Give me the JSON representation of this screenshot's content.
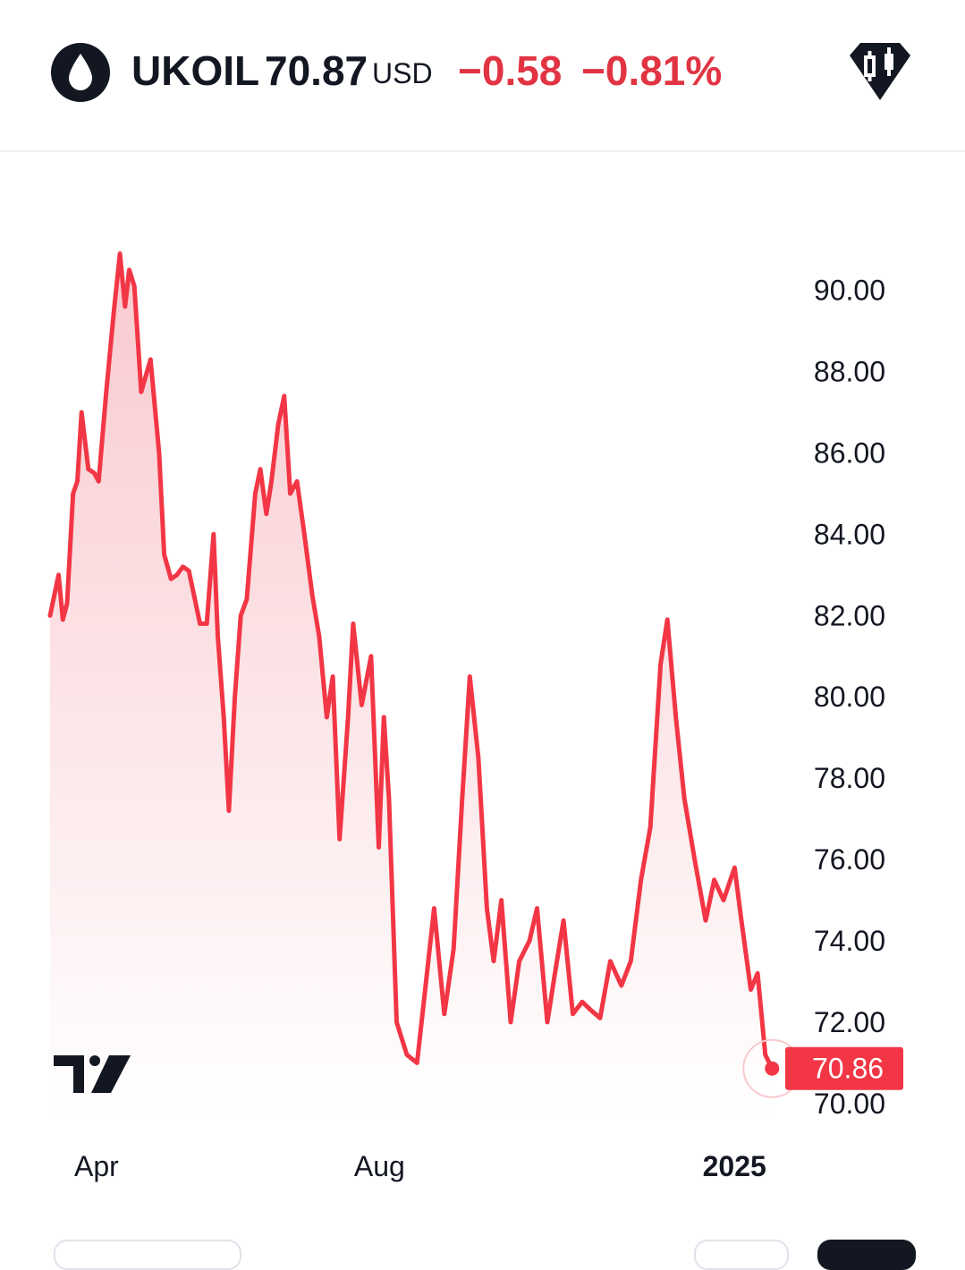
{
  "header": {
    "symbol": "UKOIL",
    "price": "70.87",
    "currency": "USD",
    "change": "−0.58",
    "change_percent": "−0.81%",
    "logo_icon": "oil-drop-icon",
    "chart_type_icon": "candlestick-icon"
  },
  "colors": {
    "line": "#f23645",
    "fill_top": "#f9c9ce",
    "fill_bottom": "#ffffff",
    "down": "#e13443",
    "text": "#131722"
  },
  "chart_data": {
    "type": "area",
    "title": "",
    "xlabel": "",
    "ylabel": "",
    "y_ticks": [
      "90.00",
      "88.00",
      "86.00",
      "84.00",
      "82.00",
      "80.00",
      "78.00",
      "76.00",
      "74.00",
      "72.00",
      "70.00"
    ],
    "ylim": [
      69.6,
      92.3
    ],
    "x_ticks": [
      {
        "label": "Apr",
        "date": "2024-04-01",
        "bold": false
      },
      {
        "label": "Aug",
        "date": "2024-08-01",
        "bold": false
      },
      {
        "label": "2025",
        "date": "2025-01-01",
        "bold": true
      }
    ],
    "x_range": [
      "2024-03-12",
      "2025-03-14"
    ],
    "last_price_label": "70.86",
    "legend": "none",
    "grid": false,
    "series": [
      {
        "values": [
          [
            0,
            82.0
          ],
          [
            0.01,
            83.0
          ],
          [
            0.015,
            81.9
          ],
          [
            0.02,
            82.3
          ],
          [
            0.027,
            85.0
          ],
          [
            0.032,
            85.3
          ],
          [
            0.037,
            87.0
          ],
          [
            0.045,
            85.6
          ],
          [
            0.052,
            85.5
          ],
          [
            0.057,
            85.3
          ],
          [
            0.066,
            87.5
          ],
          [
            0.075,
            89.5
          ],
          [
            0.082,
            90.9
          ],
          [
            0.088,
            89.6
          ],
          [
            0.093,
            90.5
          ],
          [
            0.099,
            90.1
          ],
          [
            0.107,
            87.5
          ],
          [
            0.118,
            88.3
          ],
          [
            0.128,
            86.0
          ],
          [
            0.134,
            83.5
          ],
          [
            0.142,
            82.9
          ],
          [
            0.149,
            83.0
          ],
          [
            0.156,
            83.2
          ],
          [
            0.163,
            83.1
          ],
          [
            0.176,
            81.8
          ],
          [
            0.184,
            81.8
          ],
          [
            0.192,
            84.0
          ],
          [
            0.197,
            81.5
          ],
          [
            0.204,
            79.5
          ],
          [
            0.21,
            77.2
          ],
          [
            0.217,
            80.0
          ],
          [
            0.224,
            82.0
          ],
          [
            0.231,
            82.4
          ],
          [
            0.241,
            85.0
          ],
          [
            0.247,
            85.6
          ],
          [
            0.254,
            84.5
          ],
          [
            0.26,
            85.3
          ],
          [
            0.268,
            86.7
          ],
          [
            0.275,
            87.4
          ],
          [
            0.282,
            85.0
          ],
          [
            0.29,
            85.3
          ],
          [
            0.298,
            84.1
          ],
          [
            0.308,
            82.5
          ],
          [
            0.316,
            81.5
          ],
          [
            0.325,
            79.5
          ],
          [
            0.332,
            80.5
          ],
          [
            0.34,
            76.5
          ],
          [
            0.35,
            79.5
          ],
          [
            0.356,
            81.8
          ],
          [
            0.366,
            79.8
          ],
          [
            0.377,
            81.0
          ],
          [
            0.386,
            76.3
          ],
          [
            0.392,
            79.5
          ],
          [
            0.398,
            77.5
          ],
          [
            0.407,
            72.0
          ],
          [
            0.419,
            71.2
          ],
          [
            0.431,
            71.0
          ],
          [
            0.439,
            72.5
          ],
          [
            0.451,
            74.8
          ],
          [
            0.463,
            72.2
          ],
          [
            0.474,
            73.8
          ],
          [
            0.484,
            77.5
          ],
          [
            0.493,
            80.5
          ],
          [
            0.503,
            78.5
          ],
          [
            0.513,
            74.8
          ],
          [
            0.521,
            73.5
          ],
          [
            0.53,
            75.0
          ],
          [
            0.541,
            72.0
          ],
          [
            0.551,
            73.5
          ],
          [
            0.563,
            74.0
          ],
          [
            0.572,
            74.8
          ],
          [
            0.584,
            72.0
          ],
          [
            0.593,
            73.2
          ],
          [
            0.603,
            74.5
          ],
          [
            0.614,
            72.2
          ],
          [
            0.625,
            72.5
          ],
          [
            0.635,
            72.3
          ],
          [
            0.646,
            72.1
          ],
          [
            0.658,
            73.5
          ],
          [
            0.671,
            72.9
          ],
          [
            0.682,
            73.5
          ],
          [
            0.694,
            75.5
          ],
          [
            0.705,
            76.8
          ],
          [
            0.717,
            80.8
          ],
          [
            0.725,
            81.9
          ],
          [
            0.735,
            79.5
          ],
          [
            0.745,
            77.5
          ],
          [
            0.757,
            76.0
          ],
          [
            0.77,
            74.5
          ],
          [
            0.78,
            75.5
          ],
          [
            0.791,
            75.0
          ],
          [
            0.804,
            75.8
          ],
          [
            0.812,
            74.5
          ],
          [
            0.823,
            72.8
          ],
          [
            0.831,
            73.2
          ],
          [
            0.84,
            71.2
          ],
          [
            0.848,
            70.86
          ]
        ]
      }
    ]
  },
  "bottom_bar": {
    "pills": [
      "",
      "",
      ""
    ]
  }
}
